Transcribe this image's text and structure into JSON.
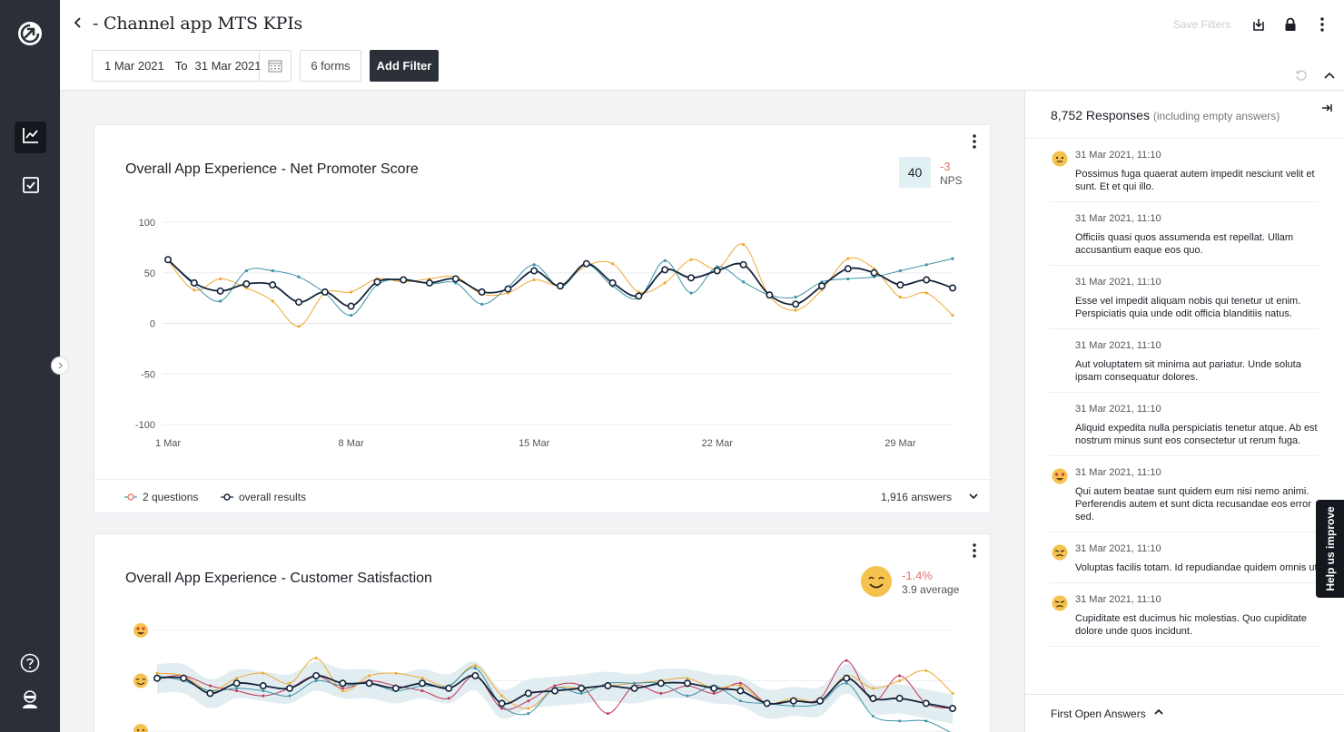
{
  "header": {
    "title": "- Channel app MTS KPIs",
    "date_from": "1 Mar 2021",
    "date_to_label": "To",
    "date_to": "31 Mar 2021",
    "forms_label": "6 forms",
    "add_filter_label": "Add Filter",
    "save_filters_label": "Save Filters"
  },
  "nps_card": {
    "title": "Overall App Experience - Net Promoter Score",
    "score": "40",
    "delta": "-3",
    "metric_label": "NPS",
    "legend_questions": "2 questions",
    "legend_overall": "overall results",
    "answers": "1,916 answers"
  },
  "csat_card": {
    "title": "Overall App Experience - Customer Satisfaction",
    "delta": "-1.4%",
    "average": "3.9 average"
  },
  "responses": {
    "title": "8,752 Responses",
    "subtitle": "(including empty answers)",
    "first_open_label": "First Open Answers",
    "items": [
      {
        "date": "31 Mar 2021, 11:10",
        "face": "neutral",
        "text": "Possimus fuga quaerat autem impedit nesciunt velit et sunt. Et et qui illo."
      },
      {
        "date": "31 Mar 2021, 11:10",
        "face": "",
        "text": "Officiis quasi quos assumenda est repellat. Ullam accusantium eaque eos quo."
      },
      {
        "date": "31 Mar 2021, 11:10",
        "face": "",
        "text": "Esse vel impedit aliquam nobis qui tenetur ut enim. Perspiciatis quia unde odit officia blanditiis natus."
      },
      {
        "date": "31 Mar 2021, 11:10",
        "face": "",
        "text": "Aut voluptatem sit minima aut pariatur. Unde soluta ipsam consequatur dolores."
      },
      {
        "date": "31 Mar 2021, 11:10",
        "face": "",
        "text": "Aliquid expedita nulla perspiciatis tenetur atque. Ab est nostrum minus sunt eos consectetur ut rerum fuga."
      },
      {
        "date": "31 Mar 2021, 11:10",
        "face": "love",
        "text": "Qui autem beatae sunt quidem eum nisi nemo animi. Perferendis autem et sunt dicta recusandae eos error sed."
      },
      {
        "date": "31 Mar 2021, 11:10",
        "face": "unhappy",
        "text": "Voluptas facilis totam. Id repudiandae quidem omnis ut."
      },
      {
        "date": "31 Mar 2021, 11:10",
        "face": "unhappy",
        "text": "Cupiditate est ducimus hic molestias. Quo cupiditate dolore unde quos incidunt."
      }
    ]
  },
  "help_tab_label": "Help us improve",
  "colors": {
    "nav_bg": "#2b2f38",
    "series_teal": "#3d93a8",
    "series_orange": "#f0a834",
    "series_overall": "#14243a",
    "series_red": "#c0395a",
    "delta_red": "#e8746c",
    "emoji_yellow": "#f6c24f"
  },
  "chart_data": [
    {
      "type": "line",
      "title": "Overall App Experience - Net Promoter Score",
      "x": [
        "1 Mar",
        "2 Mar",
        "3 Mar",
        "4 Mar",
        "5 Mar",
        "6 Mar",
        "7 Mar",
        "8 Mar",
        "9 Mar",
        "10 Mar",
        "11 Mar",
        "12 Mar",
        "13 Mar",
        "14 Mar",
        "15 Mar",
        "16 Mar",
        "17 Mar",
        "18 Mar",
        "19 Mar",
        "20 Mar",
        "21 Mar",
        "22 Mar",
        "23 Mar",
        "24 Mar",
        "25 Mar",
        "26 Mar",
        "27 Mar",
        "28 Mar",
        "29 Mar",
        "30 Mar",
        "31 Mar"
      ],
      "xticks": [
        "1 Mar",
        "8 Mar",
        "15 Mar",
        "22 Mar",
        "29 Mar"
      ],
      "yticks": [
        100,
        50,
        0,
        -50,
        -100
      ],
      "ylim": [
        -100,
        100
      ],
      "grid": true,
      "series": [
        {
          "name": "overall results",
          "color": "#14243a",
          "values": [
            63,
            40,
            32,
            39,
            38,
            21,
            31,
            17,
            41,
            43,
            40,
            44,
            31,
            34,
            52,
            37,
            59,
            40,
            27,
            53,
            45,
            52,
            58,
            28,
            19,
            37,
            54,
            50,
            38,
            43,
            35
          ]
        },
        {
          "color": "#3d93a8",
          "values": [
            63,
            38,
            22,
            52,
            52,
            46,
            30,
            8,
            38,
            44,
            39,
            40,
            19,
            36,
            58,
            36,
            58,
            37,
            25,
            62,
            30,
            56,
            41,
            28,
            26,
            41,
            44,
            46,
            52,
            58,
            64
          ]
        },
        {
          "color": "#f0a834",
          "values": [
            62,
            33,
            44,
            35,
            22,
            -3,
            30,
            31,
            44,
            41,
            44,
            46,
            29,
            30,
            43,
            38,
            57,
            59,
            31,
            40,
            63,
            54,
            78,
            27,
            13,
            33,
            64,
            54,
            26,
            30,
            8
          ]
        }
      ]
    },
    {
      "type": "line",
      "title": "Overall App Experience - Customer Satisfaction",
      "ylim": [
        1,
        5
      ],
      "yticks": [
        "love",
        "happy",
        "neutral"
      ],
      "grid": true,
      "series": [
        {
          "name": "overall results",
          "color": "#14243a",
          "values": [
            4.05,
            4.05,
            3.75,
            3.95,
            3.9,
            3.85,
            4.1,
            3.95,
            3.95,
            3.85,
            3.95,
            3.85,
            4.1,
            3.55,
            3.75,
            3.8,
            3.85,
            3.9,
            3.85,
            3.95,
            3.95,
            3.85,
            3.8,
            3.55,
            3.6,
            3.6,
            4.05,
            3.65,
            3.65,
            3.55,
            3.45
          ]
        },
        {
          "color": "#3d93a8",
          "values": [
            4.1,
            4.0,
            3.8,
            3.85,
            3.8,
            3.7,
            4.0,
            3.9,
            3.95,
            3.8,
            3.9,
            3.9,
            4.25,
            3.5,
            3.35,
            3.85,
            3.75,
            3.95,
            3.95,
            3.95,
            3.7,
            3.9,
            3.6,
            3.55,
            3.5,
            3.55,
            3.95,
            3.3,
            3.2,
            3.2,
            2.95
          ]
        },
        {
          "color": "#f0a834",
          "values": [
            4.15,
            4.1,
            3.8,
            4.05,
            4.15,
            3.95,
            4.45,
            3.8,
            4.1,
            4.15,
            4.05,
            3.9,
            4.3,
            3.7,
            3.45,
            3.85,
            3.85,
            3.9,
            3.95,
            4.0,
            4.05,
            3.85,
            3.9,
            3.55,
            3.65,
            3.6,
            4.1,
            3.85,
            4.0,
            4.2,
            3.75
          ]
        },
        {
          "color": "#c0395a",
          "values": [
            4.05,
            4.1,
            3.9,
            3.8,
            3.7,
            3.85,
            4.1,
            3.85,
            4.0,
            3.9,
            3.8,
            3.65,
            4.1,
            3.45,
            3.6,
            3.9,
            3.9,
            3.35,
            3.9,
            3.75,
            3.9,
            3.75,
            3.95,
            3.55,
            3.6,
            3.65,
            4.4,
            3.6,
            4.1,
            3.55,
            3.45
          ]
        }
      ]
    }
  ]
}
